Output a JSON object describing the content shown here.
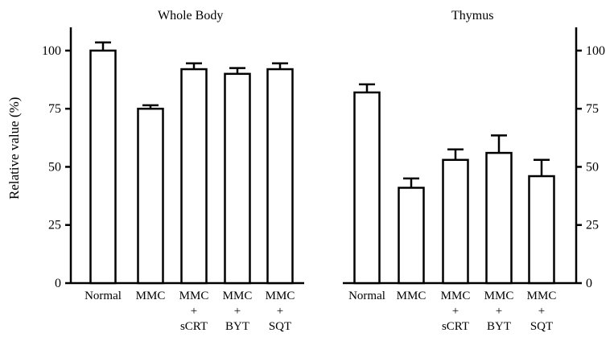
{
  "chart_data": [
    {
      "type": "bar",
      "title": "Whole Body",
      "ylabel": "Relative value (%)",
      "ylim": [
        0,
        110
      ],
      "yticks": [
        0,
        25,
        50,
        75,
        100
      ],
      "axis_side": "left",
      "categories": [
        [
          "Normal"
        ],
        [
          "MMC"
        ],
        [
          "MMC",
          "+",
          "sCRT"
        ],
        [
          "MMC",
          "+",
          "BYT"
        ],
        [
          "MMC",
          "+",
          "SQT"
        ]
      ],
      "values": [
        100,
        75,
        92,
        90,
        92
      ],
      "errors": [
        3.5,
        1.5,
        2.5,
        2.5,
        2.5
      ]
    },
    {
      "type": "bar",
      "title": "Thymus",
      "ylabel": "",
      "ylim": [
        0,
        110
      ],
      "yticks": [
        0,
        25,
        50,
        75,
        100
      ],
      "axis_side": "right",
      "categories": [
        [
          "Normal"
        ],
        [
          "MMC"
        ],
        [
          "MMC",
          "+",
          "sCRT"
        ],
        [
          "MMC",
          "+",
          "BYT"
        ],
        [
          "MMC",
          "+",
          "SQT"
        ]
      ],
      "values": [
        82,
        41,
        53,
        56,
        46
      ],
      "errors": [
        3.5,
        4,
        4.5,
        7.5,
        7
      ]
    }
  ]
}
